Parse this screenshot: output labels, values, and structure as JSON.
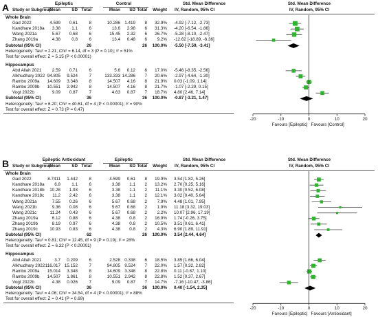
{
  "colors": {
    "ci_line": "#3a3a3a",
    "square": "#2db52d",
    "diamond": "#000000",
    "axis": "#222222"
  },
  "panels": [
    {
      "letter": "A",
      "exp_label": "Epileptic",
      "ctl_label": "Control",
      "col_headers": [
        "Study or Subgroup",
        "Mean",
        "SD",
        "Total",
        "Mean",
        "SD",
        "Total",
        "Weight"
      ],
      "effect_header": "Std. Mean Difference",
      "effect_sub": "IV, Random, 95% CI",
      "groups": [
        {
          "name": "Whole Brain",
          "studies": [
            {
              "study": "Gad 2022",
              "m1": "4.599",
              "sd1": "0.61",
              "n1": "8",
              "m2": "10.286",
              "sd2": "1.419",
              "n2": "8",
              "weight": "32.9%",
              "ci": "-4.92 [-7.12, -2.73]"
            },
            {
              "study": "Kandhare 2018a",
              "m1": "3.38",
              "sd1": "1.1",
              "n1": "6",
              "m2": "13.6",
              "sd2": "2.98",
              "n2": "6",
              "weight": "31.3%",
              "ci": "-4.20 [-6.54, -1.86]"
            },
            {
              "study": "Wang 2021a",
              "m1": "5.67",
              "sd1": "0.68",
              "n1": "6",
              "m2": "15.45",
              "sd2": "2.32",
              "n2": "6",
              "weight": "26.7%",
              "ci": "-5.28 [-8.10, -2.47]"
            },
            {
              "study": "Zhang 2019a",
              "m1": "4.38",
              "sd1": "0.8",
              "n1": "6",
              "m2": "13.4",
              "sd2": "0.48",
              "n2": "6",
              "weight": "9.2%",
              "ci": "-12.62 [-18.89, -6.36]"
            }
          ],
          "subtotal": {
            "label": "Subtotal (95% CI)",
            "n1": "26",
            "n2": "26",
            "weight": "100.0%",
            "ci": "-5.50 [-7.59, -3.41]"
          },
          "heterogeneity": "Heterogeneity: Tau² = 2.21; Chi² = 6.14, df = 3 (P = 0.10); I² = 51%",
          "test": "Test for overall effect: Z = 5.15 (P < 0.00001)"
        },
        {
          "name": "Hippocampus",
          "studies": [
            {
              "study": "Abd Allah 2021",
              "m1": "2.59",
              "sd1": "0.71",
              "n1": "6",
              "m2": "5.6",
              "sd2": "0.12",
              "n2": "6",
              "weight": "17.0%",
              "ci": "-5.46 [-8.35, -2.56]"
            },
            {
              "study": "Alkhudhary 2022",
              "m1": "94.805",
              "sd1": "9.524",
              "n1": "7",
              "m2": "133.333",
              "sd2": "14.286",
              "n2": "7",
              "weight": "20.6%",
              "ci": "-2.97 [-4.64, -1.30]"
            },
            {
              "study": "Rambo 2009a",
              "m1": "14.609",
              "sd1": "3.348",
              "n1": "8",
              "m2": "14.507",
              "sd2": "4.16",
              "n2": "8",
              "weight": "21.9%",
              "ci": "0.03 [-1.09, 1.14]"
            },
            {
              "study": "Rambo 2009b",
              "m1": "10.551",
              "sd1": "2.942",
              "n1": "8",
              "m2": "14.507",
              "sd2": "4.16",
              "n2": "8",
              "weight": "21.7%",
              "ci": "-1.07 [-2.29, 0.15]"
            },
            {
              "study": "Vogt 2022b",
              "m1": "9.09",
              "sd1": "0.87",
              "n1": "7",
              "m2": "4.63",
              "sd2": "0.87",
              "n2": "7",
              "weight": "18.7%",
              "ci": "4.80 [2.46, 7.14]"
            }
          ],
          "subtotal": {
            "label": "Subtotal (95% CI)",
            "n1": "36",
            "n2": "36",
            "weight": "100.0%",
            "ci": "-0.87 [-3.21, 1.47]"
          },
          "heterogeneity": "Heterogeneity: Tau² = 6.20; Chi² = 40.61, df = 4 (P < 0.00001); I² = 90%",
          "test": "Test for overall effect: Z = 0.73 (P = 0.47)"
        }
      ],
      "axis": {
        "min": -20,
        "max": 20,
        "ticks": [
          "-20",
          "-10",
          "0",
          "10",
          "20"
        ],
        "left_label": "Favours [Epileptic]",
        "right_label": "Favours [Control]"
      }
    },
    {
      "letter": "B",
      "exp_label": "Epileptic Antioxidant",
      "ctl_label": "Epileptic",
      "col_headers": [
        "Study or Subgroup",
        "Mean",
        "SD",
        "Total",
        "Mean",
        "SD",
        "Total",
        "Weight"
      ],
      "effect_header": "Std. Mean Difference",
      "effect_sub": "IV, Random, 95% CI",
      "groups": [
        {
          "name": "Whole Brain",
          "studies": [
            {
              "study": "Gad 2022",
              "m1": "8.7411",
              "sd1": "1.442",
              "n1": "8",
              "m2": "4.599",
              "sd2": "0.61",
              "n2": "8",
              "weight": "19.9%",
              "ci": "3.54 [1.82, 5.26]"
            },
            {
              "study": "Kandhare 2018a",
              "m1": "6.8",
              "sd1": "1.1",
              "n1": "6",
              "m2": "3.38",
              "sd2": "1.1",
              "n2": "2",
              "weight": "13.2%",
              "ci": "2.70 [0.25, 5.16]"
            },
            {
              "study": "Kandhare 2018b",
              "m1": "10.28",
              "sd1": "1.93",
              "n1": "6",
              "m2": "3.38",
              "sd2": "1.1",
              "n2": "2",
              "weight": "11.1%",
              "ci": "3.30 [0.52, 6.08]"
            },
            {
              "study": "Kandhare 2018c",
              "m1": "11.2",
              "sd1": "2.42",
              "n1": "6",
              "m2": "3.38",
              "sd2": "1.1",
              "n2": "2",
              "weight": "12.1%",
              "ci": "3.02 [0.40, 5.64]"
            },
            {
              "study": "Wang 2021a",
              "m1": "7.55",
              "sd1": "0.26",
              "n1": "6",
              "m2": "5.67",
              "sd2": "0.68",
              "n2": "2",
              "weight": "7.9%",
              "ci": "4.48 [1.01, 7.95]"
            },
            {
              "study": "Wang 2021b",
              "m1": "9.36",
              "sd1": "0.08",
              "n1": "6",
              "m2": "5.67",
              "sd2": "0.68",
              "n2": "2",
              "weight": "1.9%",
              "ci": "11.18 [3.32, 19.03]"
            },
            {
              "study": "Wang 2021c",
              "m1": "11.24",
              "sd1": "0.43",
              "n1": "6",
              "m2": "5.67",
              "sd2": "0.68",
              "n2": "2",
              "weight": "2.2%",
              "ci": "10.07 [2.96, 17.19]"
            },
            {
              "study": "Zhang 2019a",
              "m1": "6.12",
              "sd1": "0.88",
              "n1": "6",
              "m2": "4.38",
              "sd2": "0.8",
              "n2": "2",
              "weight": "16.9%",
              "ci": "1.74 [-0.26, 3.75]"
            },
            {
              "study": "Zhang 2019b",
              "m1": "8.19",
              "sd1": "0.97",
              "n1": "6",
              "m2": "4.38",
              "sd2": "0.8",
              "n2": "2",
              "weight": "10.5%",
              "ci": "3.51 [0.61, 6.41]"
            },
            {
              "study": "Zhang 2019c",
              "m1": "10.93",
              "sd1": "0.83",
              "n1": "6",
              "m2": "4.38",
              "sd2": "0.8",
              "n2": "2",
              "weight": "4.3%",
              "ci": "6.90 [1.89, 11.91]"
            }
          ],
          "subtotal": {
            "label": "Subtotal (95% CI)",
            "n1": "62",
            "n2": "26",
            "weight": "100.0%",
            "ci": "3.54 [2.44, 4.64]"
          },
          "heterogeneity": "Heterogeneity: Tau² = 0.81; Chi² = 12.45, df = 9 (P = 0.19); I² = 28%",
          "test": "Test for overall effect: Z = 6.32 (P < 0.00001)"
        },
        {
          "name": "Hippocampus",
          "studies": [
            {
              "study": "Abd Allah 2021",
              "m1": "3.7",
              "sd1": "0.209",
              "n1": "6",
              "m2": "2.528",
              "sd2": "0.338",
              "n2": "6",
              "weight": "18.5%",
              "ci": "3.85 [1.66, 6.04]"
            },
            {
              "study": "Alkhudhary 2022",
              "m1": "116.017",
              "sd1": "15.152",
              "n1": "7",
              "m2": "94.805",
              "sd2": "9.524",
              "n2": "7",
              "weight": "22.0%",
              "ci": "1.57 [0.32, 2.82]"
            },
            {
              "study": "Rambo 2009a",
              "m1": "15.014",
              "sd1": "3.348",
              "n1": "8",
              "m2": "14.609",
              "sd2": "3.348",
              "n2": "8",
              "weight": "22.8%",
              "ci": "0.11 [-0.87, 1.10]"
            },
            {
              "study": "Rambo 2009b",
              "m1": "14.507",
              "sd1": "1.861",
              "n1": "8",
              "m2": "10.551",
              "sd2": "2.942",
              "n2": "8",
              "weight": "22.8%",
              "ci": "1.52 [0.37, 2.67]"
            },
            {
              "study": "Vogt 2022b",
              "m1": "4.38",
              "sd1": "0.026",
              "n1": "7",
              "m2": "9.09",
              "sd2": "0.87",
              "n2": "7",
              "weight": "14.7%",
              "ci": "-7.16 [-10.47, -3.86]"
            }
          ],
          "subtotal": {
            "label": "Subtotal (95% CI)",
            "n1": "36",
            "n2": "36",
            "weight": "100.0%",
            "ci": "0.40 [-1.54, 2.35]"
          },
          "heterogeneity": "Heterogeneity: Tau² = 4.06; Chi² = 34.54, df = 4 (P < 0.00001); I² = 88%",
          "test": "Test for overall effect: Z = 0.41 (P = 0.69)"
        }
      ],
      "axis": {
        "min": -20,
        "max": 20,
        "ticks": [
          "-20",
          "-10",
          "0",
          "10",
          "20"
        ],
        "left_label": "Favours [Epileptic]",
        "right_label": "Favours [Antioxidant]"
      }
    }
  ],
  "chart_data": [
    {
      "type": "forest",
      "title": "",
      "xlim": [
        -20,
        20
      ],
      "xticks": [
        -20,
        -10,
        0,
        10,
        20
      ],
      "left_label": "Favours [Epileptic]",
      "right_label": "Favours [Control]",
      "studies": [
        {
          "group": "Whole Brain",
          "study": "Gad 2022",
          "smd": -4.92,
          "lo": -7.12,
          "hi": -2.73,
          "weight": 32.9
        },
        {
          "group": "Whole Brain",
          "study": "Kandhare 2018a",
          "smd": -4.2,
          "lo": -6.54,
          "hi": -1.86,
          "weight": 31.3
        },
        {
          "group": "Whole Brain",
          "study": "Wang 2021a",
          "smd": -5.28,
          "lo": -8.1,
          "hi": -2.47,
          "weight": 26.7
        },
        {
          "group": "Whole Brain",
          "study": "Zhang 2019a",
          "smd": -12.62,
          "lo": -18.89,
          "hi": -6.36,
          "weight": 9.2
        },
        {
          "group": "Hippocampus",
          "study": "Abd Allah 2021",
          "smd": -5.46,
          "lo": -8.35,
          "hi": -2.56,
          "weight": 17.0
        },
        {
          "group": "Hippocampus",
          "study": "Alkhudhary 2022",
          "smd": -2.97,
          "lo": -4.64,
          "hi": -1.3,
          "weight": 20.6
        },
        {
          "group": "Hippocampus",
          "study": "Rambo 2009a",
          "smd": 0.03,
          "lo": -1.09,
          "hi": 1.14,
          "weight": 21.9
        },
        {
          "group": "Hippocampus",
          "study": "Rambo 2009b",
          "smd": -1.07,
          "lo": -2.29,
          "hi": 0.15,
          "weight": 21.7
        },
        {
          "group": "Hippocampus",
          "study": "Vogt 2022b",
          "smd": 4.8,
          "lo": 2.46,
          "hi": 7.14,
          "weight": 18.7
        }
      ],
      "subtotals": [
        {
          "group": "Whole Brain",
          "smd": -5.5,
          "lo": -7.59,
          "hi": -3.41
        },
        {
          "group": "Hippocampus",
          "smd": -0.87,
          "lo": -3.21,
          "hi": 1.47
        }
      ]
    },
    {
      "type": "forest",
      "title": "",
      "xlim": [
        -20,
        20
      ],
      "xticks": [
        -20,
        -10,
        0,
        10,
        20
      ],
      "left_label": "Favours [Epileptic]",
      "right_label": "Favours [Antioxidant]",
      "studies": [
        {
          "group": "Whole Brain",
          "study": "Gad 2022",
          "smd": 3.54,
          "lo": 1.82,
          "hi": 5.26,
          "weight": 19.9
        },
        {
          "group": "Whole Brain",
          "study": "Kandhare 2018a",
          "smd": 2.7,
          "lo": 0.25,
          "hi": 5.16,
          "weight": 13.2
        },
        {
          "group": "Whole Brain",
          "study": "Kandhare 2018b",
          "smd": 3.3,
          "lo": 0.52,
          "hi": 6.08,
          "weight": 11.1
        },
        {
          "group": "Whole Brain",
          "study": "Kandhare 2018c",
          "smd": 3.02,
          "lo": 0.4,
          "hi": 5.64,
          "weight": 12.1
        },
        {
          "group": "Whole Brain",
          "study": "Wang 2021a",
          "smd": 4.48,
          "lo": 1.01,
          "hi": 7.95,
          "weight": 7.9
        },
        {
          "group": "Whole Brain",
          "study": "Wang 2021b",
          "smd": 11.18,
          "lo": 3.32,
          "hi": 19.03,
          "weight": 1.9
        },
        {
          "group": "Whole Brain",
          "study": "Wang 2021c",
          "smd": 10.07,
          "lo": 2.96,
          "hi": 17.19,
          "weight": 2.2
        },
        {
          "group": "Whole Brain",
          "study": "Zhang 2019a",
          "smd": 1.74,
          "lo": -0.26,
          "hi": 3.75,
          "weight": 16.9
        },
        {
          "group": "Whole Brain",
          "study": "Zhang 2019b",
          "smd": 3.51,
          "lo": 0.61,
          "hi": 6.41,
          "weight": 10.5
        },
        {
          "group": "Whole Brain",
          "study": "Zhang 2019c",
          "smd": 6.9,
          "lo": 1.89,
          "hi": 11.91,
          "weight": 4.3
        },
        {
          "group": "Hippocampus",
          "study": "Abd Allah 2021",
          "smd": 3.85,
          "lo": 1.66,
          "hi": 6.04,
          "weight": 18.5
        },
        {
          "group": "Hippocampus",
          "study": "Alkhudhary 2022",
          "smd": 1.57,
          "lo": 0.32,
          "hi": 2.82,
          "weight": 22.0
        },
        {
          "group": "Hippocampus",
          "study": "Rambo 2009a",
          "smd": 0.11,
          "lo": -0.87,
          "hi": 1.1,
          "weight": 22.8
        },
        {
          "group": "Hippocampus",
          "study": "Rambo 2009b",
          "smd": 1.52,
          "lo": 0.37,
          "hi": 2.67,
          "weight": 22.8
        },
        {
          "group": "Hippocampus",
          "study": "Vogt 2022b",
          "smd": -7.16,
          "lo": -10.47,
          "hi": -3.86,
          "weight": 14.7
        }
      ],
      "subtotals": [
        {
          "group": "Whole Brain",
          "smd": 3.54,
          "lo": 2.44,
          "hi": 4.64
        },
        {
          "group": "Hippocampus",
          "smd": 0.4,
          "lo": -1.54,
          "hi": 2.35
        }
      ]
    }
  ]
}
